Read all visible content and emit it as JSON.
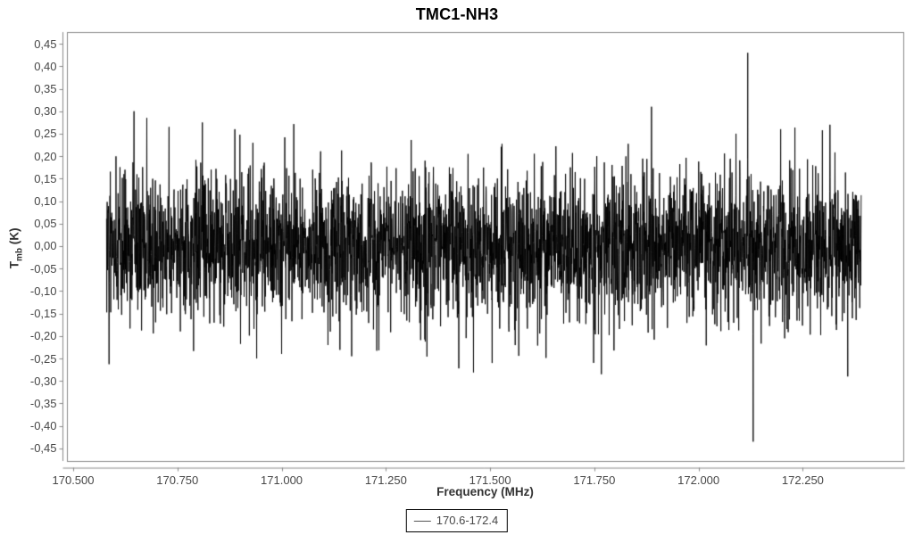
{
  "chart_data": {
    "type": "line",
    "title": "TMC1-NH3",
    "xlabel": "Frequency (MHz)",
    "ylabel": "Tmb (K)",
    "ylabel_parts": {
      "base": "T",
      "sub": "mb",
      "unit": " (K)"
    },
    "xlim": [
      170.485,
      172.491
    ],
    "ylim": [
      -0.478,
      0.476
    ],
    "grid": false,
    "background": "#ffffff",
    "axis_color": "#888888",
    "tick_label_color": "#464646",
    "x_ticks": [
      {
        "value": 170.5,
        "label": "170.500"
      },
      {
        "value": 170.75,
        "label": "170.750"
      },
      {
        "value": 171.0,
        "label": "171.000"
      },
      {
        "value": 171.25,
        "label": "171.250"
      },
      {
        "value": 171.5,
        "label": "171.500"
      },
      {
        "value": 171.75,
        "label": "171.750"
      },
      {
        "value": 172.0,
        "label": "172.000"
      },
      {
        "value": 172.25,
        "label": "172.250"
      }
    ],
    "y_ticks": [
      {
        "value": 0.45,
        "label": "0,45"
      },
      {
        "value": 0.4,
        "label": "0,40"
      },
      {
        "value": 0.35,
        "label": "0,35"
      },
      {
        "value": 0.3,
        "label": "0,30"
      },
      {
        "value": 0.25,
        "label": "0,25"
      },
      {
        "value": 0.2,
        "label": "0,20"
      },
      {
        "value": 0.15,
        "label": "0,15"
      },
      {
        "value": 0.1,
        "label": "0,10"
      },
      {
        "value": 0.05,
        "label": "0,05"
      },
      {
        "value": 0.0,
        "label": "0,00"
      },
      {
        "value": -0.05,
        "label": "-0,05"
      },
      {
        "value": -0.1,
        "label": "-0,10"
      },
      {
        "value": -0.15,
        "label": "-0,15"
      },
      {
        "value": -0.2,
        "label": "-0,20"
      },
      {
        "value": -0.25,
        "label": "-0,25"
      },
      {
        "value": -0.3,
        "label": "-0,30"
      },
      {
        "value": -0.35,
        "label": "-0,35"
      },
      {
        "value": -0.4,
        "label": "-0,40"
      },
      {
        "value": -0.45,
        "label": "-0,45"
      }
    ],
    "legend": {
      "position": "bottom-center",
      "entries": [
        {
          "label": "170.6-172.4",
          "line_color": "#555555"
        }
      ]
    },
    "series": [
      {
        "name": "170.6-172.4",
        "color": "#000000",
        "x_start": 170.58,
        "x_end": 172.39,
        "n_points": 3600,
        "noise_mean": 0.0,
        "noise_sigma": 0.08,
        "noise_tail_sigma": 0.115,
        "noise_tail_fraction": 0.05,
        "noise_clip": 0.285,
        "seed": 42,
        "spikes": [
          {
            "x": 170.646,
            "y": 0.3
          },
          {
            "x": 170.73,
            "y": 0.265
          },
          {
            "x": 170.81,
            "y": 0.275
          },
          {
            "x": 170.888,
            "y": 0.26
          },
          {
            "x": 170.94,
            "y": -0.25
          },
          {
            "x": 171.0,
            "y": -0.24
          },
          {
            "x": 171.168,
            "y": -0.245
          },
          {
            "x": 171.425,
            "y": -0.272
          },
          {
            "x": 171.505,
            "y": -0.26
          },
          {
            "x": 171.887,
            "y": 0.31
          },
          {
            "x": 172.09,
            "y": 0.25
          },
          {
            "x": 172.118,
            "y": 0.43
          },
          {
            "x": 172.131,
            "y": -0.435
          },
          {
            "x": 172.197,
            "y": 0.26
          },
          {
            "x": 172.315,
            "y": 0.27
          },
          {
            "x": 172.358,
            "y": -0.29
          }
        ]
      }
    ]
  }
}
